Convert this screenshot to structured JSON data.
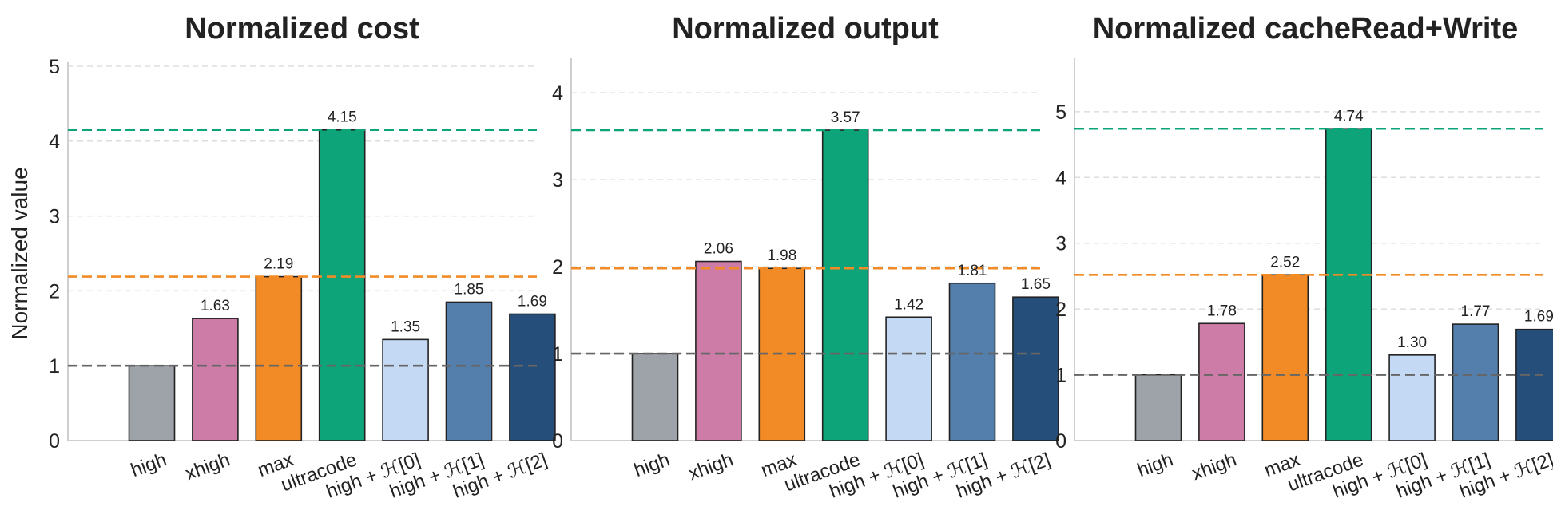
{
  "chart_data": [
    {
      "type": "bar",
      "title": "Normalized cost",
      "ylabel": "Normalized value",
      "categories": [
        "high",
        "xhigh",
        "max",
        "ultracode",
        "high + ℋ[0]",
        "high + ℋ[1]",
        "high + ℋ[2]"
      ],
      "values": [
        1.0,
        1.63,
        2.19,
        4.15,
        1.35,
        1.85,
        1.69
      ],
      "value_labels": [
        "",
        "1.63",
        "2.19",
        "4.15",
        "1.35",
        "1.85",
        "1.69"
      ],
      "bar_colors": [
        "#9ea3aa",
        "#cd7ca8",
        "#f28a26",
        "#0ea47a",
        "#c4daf4",
        "#547fad",
        "#254f7a"
      ],
      "ylim": [
        0,
        5
      ],
      "yticks": [
        0,
        1,
        2,
        3,
        4,
        5
      ],
      "reference_lines": [
        {
          "y": 1.0,
          "color": "#666666"
        },
        {
          "y": 2.19,
          "color": "#f28a26"
        },
        {
          "y": 4.15,
          "color": "#0ea47a"
        }
      ],
      "grid": true
    },
    {
      "type": "bar",
      "title": "Normalized output",
      "ylabel": "",
      "categories": [
        "high",
        "xhigh",
        "max",
        "ultracode",
        "high + ℋ[0]",
        "high + ℋ[1]",
        "high + ℋ[2]"
      ],
      "values": [
        1.0,
        2.06,
        1.98,
        3.57,
        1.42,
        1.81,
        1.65
      ],
      "value_labels": [
        "",
        "2.06",
        "1.98",
        "3.57",
        "1.42",
        "1.81",
        "1.65"
      ],
      "bar_colors": [
        "#9ea3aa",
        "#cd7ca8",
        "#f28a26",
        "#0ea47a",
        "#c4daf4",
        "#547fad",
        "#254f7a"
      ],
      "ylim": [
        0,
        4.35
      ],
      "yticks": [
        0,
        1,
        2,
        3,
        4
      ],
      "reference_lines": [
        {
          "y": 1.0,
          "color": "#666666"
        },
        {
          "y": 1.98,
          "color": "#f28a26"
        },
        {
          "y": 3.57,
          "color": "#0ea47a"
        }
      ],
      "grid": true
    },
    {
      "type": "bar",
      "title": "Normalized cacheRead+Write",
      "ylabel": "",
      "categories": [
        "high",
        "xhigh",
        "max",
        "ultracode",
        "high + ℋ[0]",
        "high + ℋ[1]",
        "high + ℋ[2]"
      ],
      "values": [
        1.0,
        1.78,
        2.52,
        4.74,
        1.3,
        1.77,
        1.69
      ],
      "value_labels": [
        "",
        "1.78",
        "2.52",
        "4.74",
        "1.30",
        "1.77",
        "1.69"
      ],
      "bar_colors": [
        "#9ea3aa",
        "#cd7ca8",
        "#f28a26",
        "#0ea47a",
        "#c4daf4",
        "#547fad",
        "#254f7a"
      ],
      "ylim": [
        0,
        5.75
      ],
      "yticks": [
        0,
        1,
        2,
        3,
        4,
        5
      ],
      "reference_lines": [
        {
          "y": 1.0,
          "color": "#666666"
        },
        {
          "y": 2.52,
          "color": "#f28a26"
        },
        {
          "y": 4.74,
          "color": "#0ea47a"
        }
      ],
      "grid": true
    }
  ]
}
